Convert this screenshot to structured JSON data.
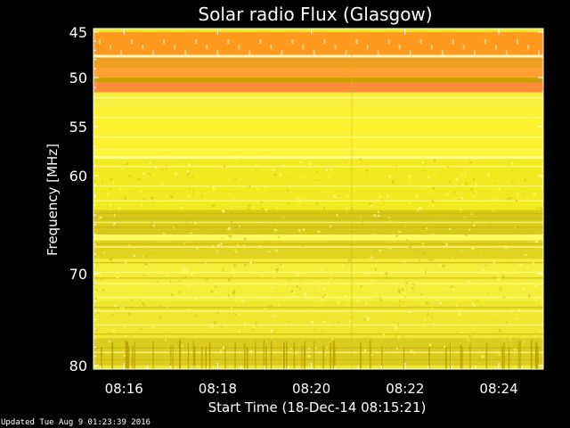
{
  "chart_data": {
    "type": "heatmap",
    "title": "Solar radio Flux (Glasgow)",
    "ylabel": "Frequency [MHz]",
    "xlabel": "Start Time (18-Dec-14 08:15:21)",
    "ylim": [
      45,
      80
    ],
    "y_ticks": [
      45,
      50,
      55,
      60,
      70,
      80
    ],
    "x_range_minutes": [
      15.35,
      24.95
    ],
    "x_ticks": [
      {
        "label": "08:16",
        "minute": 16
      },
      {
        "label": "08:18",
        "minute": 18
      },
      {
        "label": "08:20",
        "minute": 20
      },
      {
        "label": "08:22",
        "minute": 22
      },
      {
        "label": "08:24",
        "minute": 24
      }
    ],
    "frequency_bands": [
      {
        "f_start": 45.0,
        "f_end": 47.5,
        "color": "#ff9a1e"
      },
      {
        "f_start": 47.5,
        "f_end": 47.8,
        "color": "#fff4c0"
      },
      {
        "f_start": 47.8,
        "f_end": 49.0,
        "color": "#f0a020"
      },
      {
        "f_start": 49.0,
        "f_end": 50.0,
        "color": "#ffa030"
      },
      {
        "f_start": 50.0,
        "f_end": 50.5,
        "color": "#c8a000"
      },
      {
        "f_start": 50.5,
        "f_end": 51.5,
        "color": "#ff8c3a"
      },
      {
        "f_start": 51.5,
        "f_end": 53.0,
        "color": "#f8ee40"
      },
      {
        "f_start": 53.0,
        "f_end": 58.0,
        "color": "#fff230"
      },
      {
        "f_start": 58.0,
        "f_end": 58.3,
        "color": "#ffff90"
      },
      {
        "f_start": 58.3,
        "f_end": 63.5,
        "color": "#f2ea20"
      },
      {
        "f_start": 63.5,
        "f_end": 66.0,
        "color": "#d8ca18"
      },
      {
        "f_start": 66.0,
        "f_end": 66.6,
        "color": "#fffa60"
      },
      {
        "f_start": 66.6,
        "f_end": 68.5,
        "color": "#e0d420"
      },
      {
        "f_start": 68.5,
        "f_end": 73.0,
        "color": "#f4ee38"
      },
      {
        "f_start": 73.0,
        "f_end": 77.0,
        "color": "#efe630"
      },
      {
        "f_start": 77.0,
        "f_end": 80.0,
        "color": "#dccc20"
      }
    ]
  },
  "footer": {
    "updated": "Updated Tue Aug  9 01:23:39 2016"
  }
}
